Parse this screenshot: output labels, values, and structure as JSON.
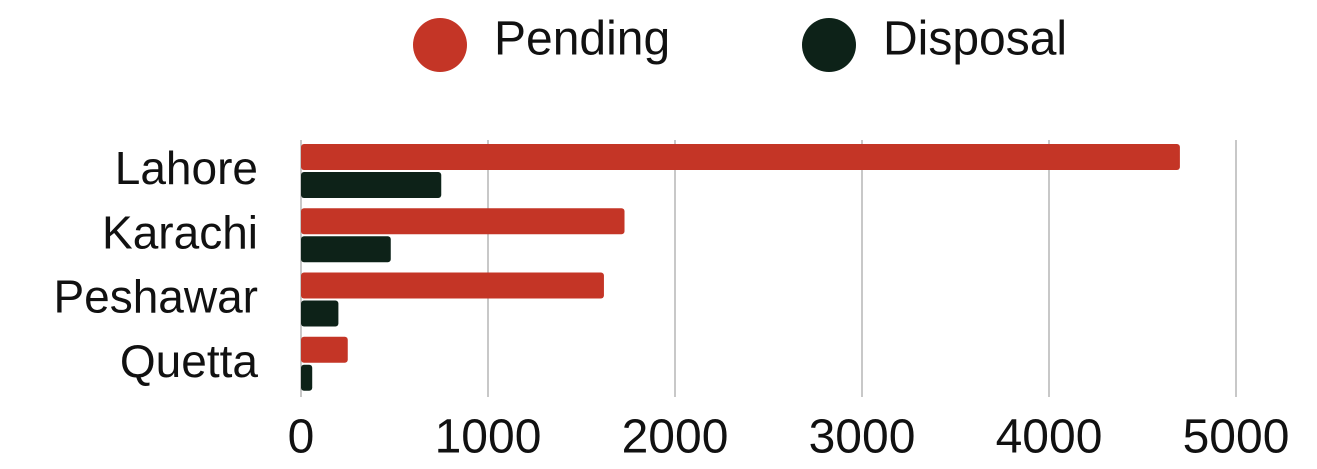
{
  "chart_data": {
    "type": "bar",
    "orientation": "horizontal",
    "categories": [
      "Lahore",
      "Karachi",
      "Peshawar",
      "Quetta"
    ],
    "series": [
      {
        "name": "Pending",
        "color": "#c43526",
        "values": [
          4700,
          1730,
          1620,
          250
        ]
      },
      {
        "name": "Disposal",
        "color": "#0d2218",
        "values": [
          750,
          480,
          200,
          60
        ]
      }
    ],
    "xlim": [
      0,
      5000
    ],
    "xticks": [
      0,
      1000,
      2000,
      3000,
      4000,
      5000
    ],
    "grid": true,
    "legend": "top"
  }
}
